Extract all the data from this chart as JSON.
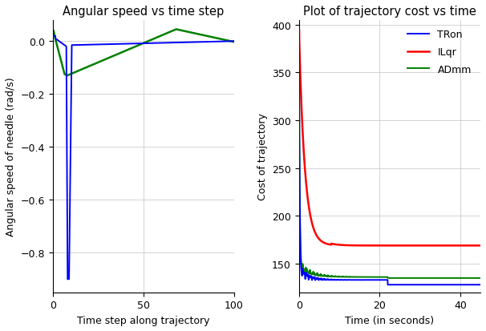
{
  "left_title": "Angular speed vs time step",
  "left_xlabel": "Time step along trajectory",
  "left_ylabel": "Angular speed of needle (rad/s)",
  "left_xlim": [
    0,
    100
  ],
  "left_ylim": [
    -0.95,
    0.08
  ],
  "left_yticks": [
    0.0,
    -0.2,
    -0.4,
    -0.6,
    -0.8
  ],
  "left_xticks": [
    0,
    50,
    100
  ],
  "right_title": "Plot of trajectory cost vs time",
  "right_xlabel": "Time (in seconds)",
  "right_ylabel": "Cost of trajectory",
  "right_xlim": [
    0,
    45
  ],
  "right_ylim": [
    120,
    405
  ],
  "right_yticks": [
    150,
    200,
    250,
    300,
    350,
    400
  ],
  "right_xticks": [
    0,
    20,
    40
  ],
  "blue_color": "#0000ff",
  "red_color": "#ff0000",
  "green_color": "#008000",
  "legend_labels": [
    "TRON",
    "ILQR",
    "ADMM"
  ],
  "bg_color": "#ffffff",
  "grid_color": "#cccccc"
}
